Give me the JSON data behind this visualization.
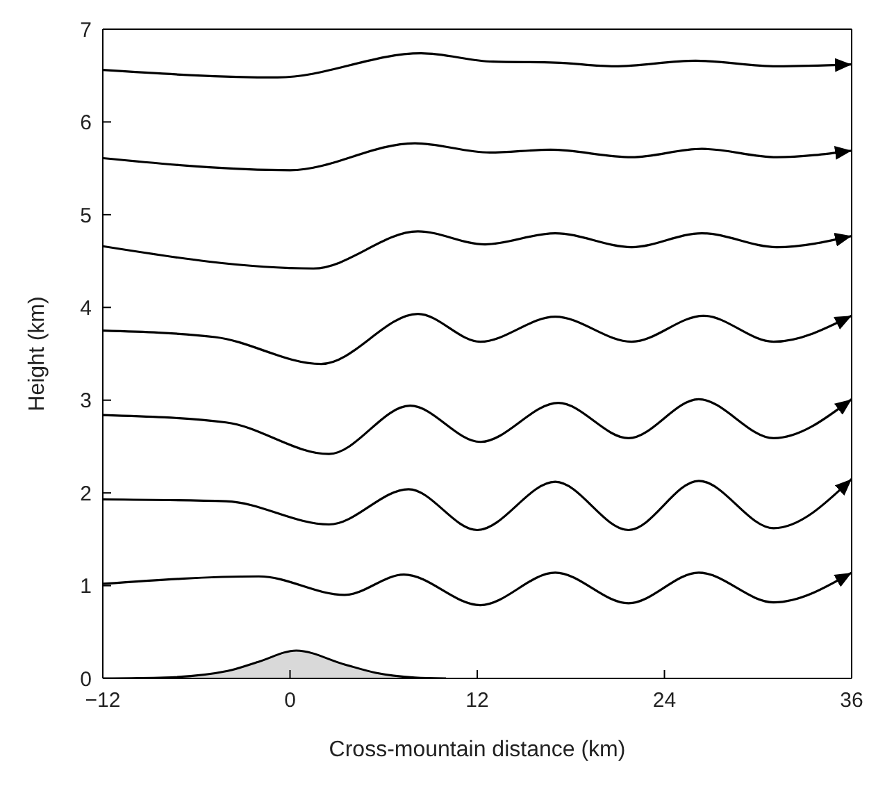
{
  "chart_data": {
    "type": "line",
    "xlabel": "Cross-mountain distance (km)",
    "ylabel": "Height (km)",
    "xlim": [
      -12,
      36
    ],
    "xticks": [
      -12,
      0,
      12,
      24,
      36
    ],
    "ylim": [
      0,
      7
    ],
    "yticks": [
      0,
      1,
      2,
      3,
      4,
      5,
      6,
      7
    ],
    "line_style": "solid",
    "series": [
      {
        "type": "area",
        "color": "#d9d9d9",
        "x": [
          -12,
          -8,
          -4,
          -2,
          0.4,
          3.5,
          5.5,
          8,
          10
        ],
        "values": [
          0,
          0.01,
          0.08,
          0.18,
          0.3,
          0.15,
          0.06,
          0.01,
          0
        ]
      },
      {
        "color": "#000000",
        "x": [
          -12,
          -2,
          3.5,
          7.3,
          12.2,
          17,
          21.7,
          26.2,
          31,
          36
        ],
        "values": [
          1.02,
          1.1,
          0.9,
          1.12,
          0.79,
          1.14,
          0.81,
          1.14,
          0.82,
          1.14
        ]
      },
      {
        "color": "#000000",
        "x": [
          -12,
          -4.1,
          2.5,
          7.6,
          12,
          17,
          21.7,
          26.2,
          31,
          36
        ],
        "values": [
          1.93,
          1.91,
          1.66,
          2.04,
          1.6,
          2.12,
          1.6,
          2.13,
          1.62,
          2.15
        ]
      },
      {
        "color": "#000000",
        "x": [
          -12,
          -4.1,
          2.5,
          7.7,
          12.2,
          17.2,
          21.7,
          26.2,
          31,
          36
        ],
        "values": [
          2.84,
          2.76,
          2.42,
          2.94,
          2.55,
          2.97,
          2.59,
          3.01,
          2.59,
          3.01
        ]
      },
      {
        "color": "#000000",
        "x": [
          -12,
          -4.8,
          2,
          8.2,
          12.2,
          17,
          21.9,
          26.5,
          31,
          36
        ],
        "values": [
          3.75,
          3.68,
          3.39,
          3.93,
          3.63,
          3.9,
          3.63,
          3.91,
          3.63,
          3.91
        ]
      },
      {
        "color": "#000000",
        "x": [
          -12,
          1.5,
          8.2,
          12.5,
          17,
          21.9,
          26.4,
          31.2,
          36
        ],
        "values": [
          4.66,
          4.42,
          4.82,
          4.68,
          4.8,
          4.65,
          4.8,
          4.65,
          4.77
        ]
      },
      {
        "color": "#000000",
        "x": [
          -12,
          0,
          8,
          12.8,
          16.7,
          21.9,
          26.4,
          31.2,
          36
        ],
        "values": [
          5.61,
          5.48,
          5.77,
          5.67,
          5.7,
          5.62,
          5.71,
          5.62,
          5.69
        ]
      },
      {
        "color": "#000000",
        "x": [
          -12,
          -0.8,
          8.4,
          13,
          17,
          20.8,
          26,
          31.2,
          36
        ],
        "values": [
          6.56,
          6.48,
          6.74,
          6.65,
          6.64,
          6.6,
          6.66,
          6.6,
          6.62
        ]
      }
    ]
  }
}
